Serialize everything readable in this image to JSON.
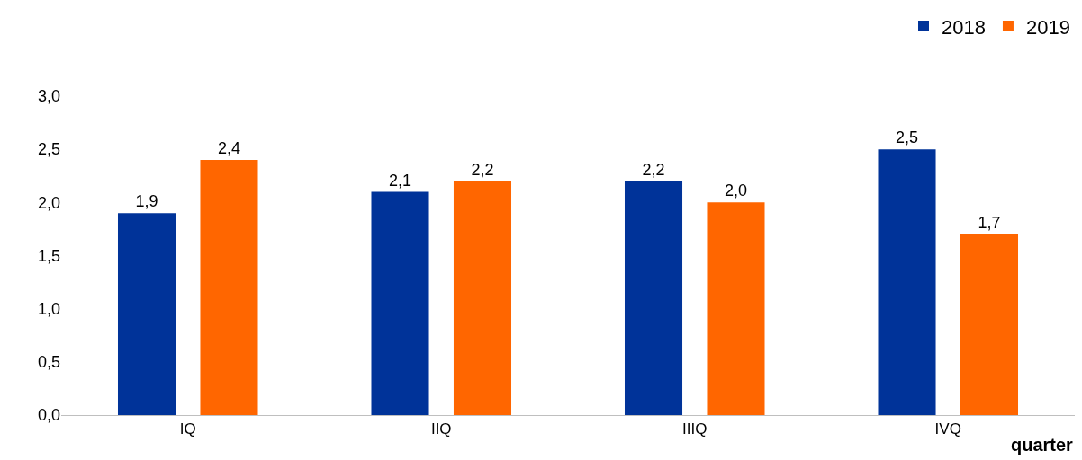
{
  "chart_data": {
    "type": "bar",
    "categories": [
      "IQ",
      "IIQ",
      "IIIQ",
      "IVQ"
    ],
    "series": [
      {
        "name": "2018",
        "color": "#003399",
        "values": [
          1.9,
          2.1,
          2.2,
          2.5
        ],
        "value_labels": [
          "1,9",
          "2,1",
          "2,2",
          "2,5"
        ]
      },
      {
        "name": "2019",
        "color": "#ff6600",
        "values": [
          2.4,
          2.2,
          2.0,
          1.7
        ],
        "value_labels": [
          "2,4",
          "2,2",
          "2,0",
          "1,7"
        ]
      }
    ],
    "xlabel": "quarter",
    "ylim": [
      0,
      3
    ],
    "yticks": [
      {
        "value": 0,
        "label": "0,0"
      },
      {
        "value": 0.5,
        "label": "0,5"
      },
      {
        "value": 1,
        "label": "1,0"
      },
      {
        "value": 1.5,
        "label": "1,5"
      },
      {
        "value": 2,
        "label": "2,0"
      },
      {
        "value": 2.5,
        "label": "2,5"
      },
      {
        "value": 3,
        "label": "3,0"
      }
    ],
    "grid": false,
    "legend": "top right"
  }
}
